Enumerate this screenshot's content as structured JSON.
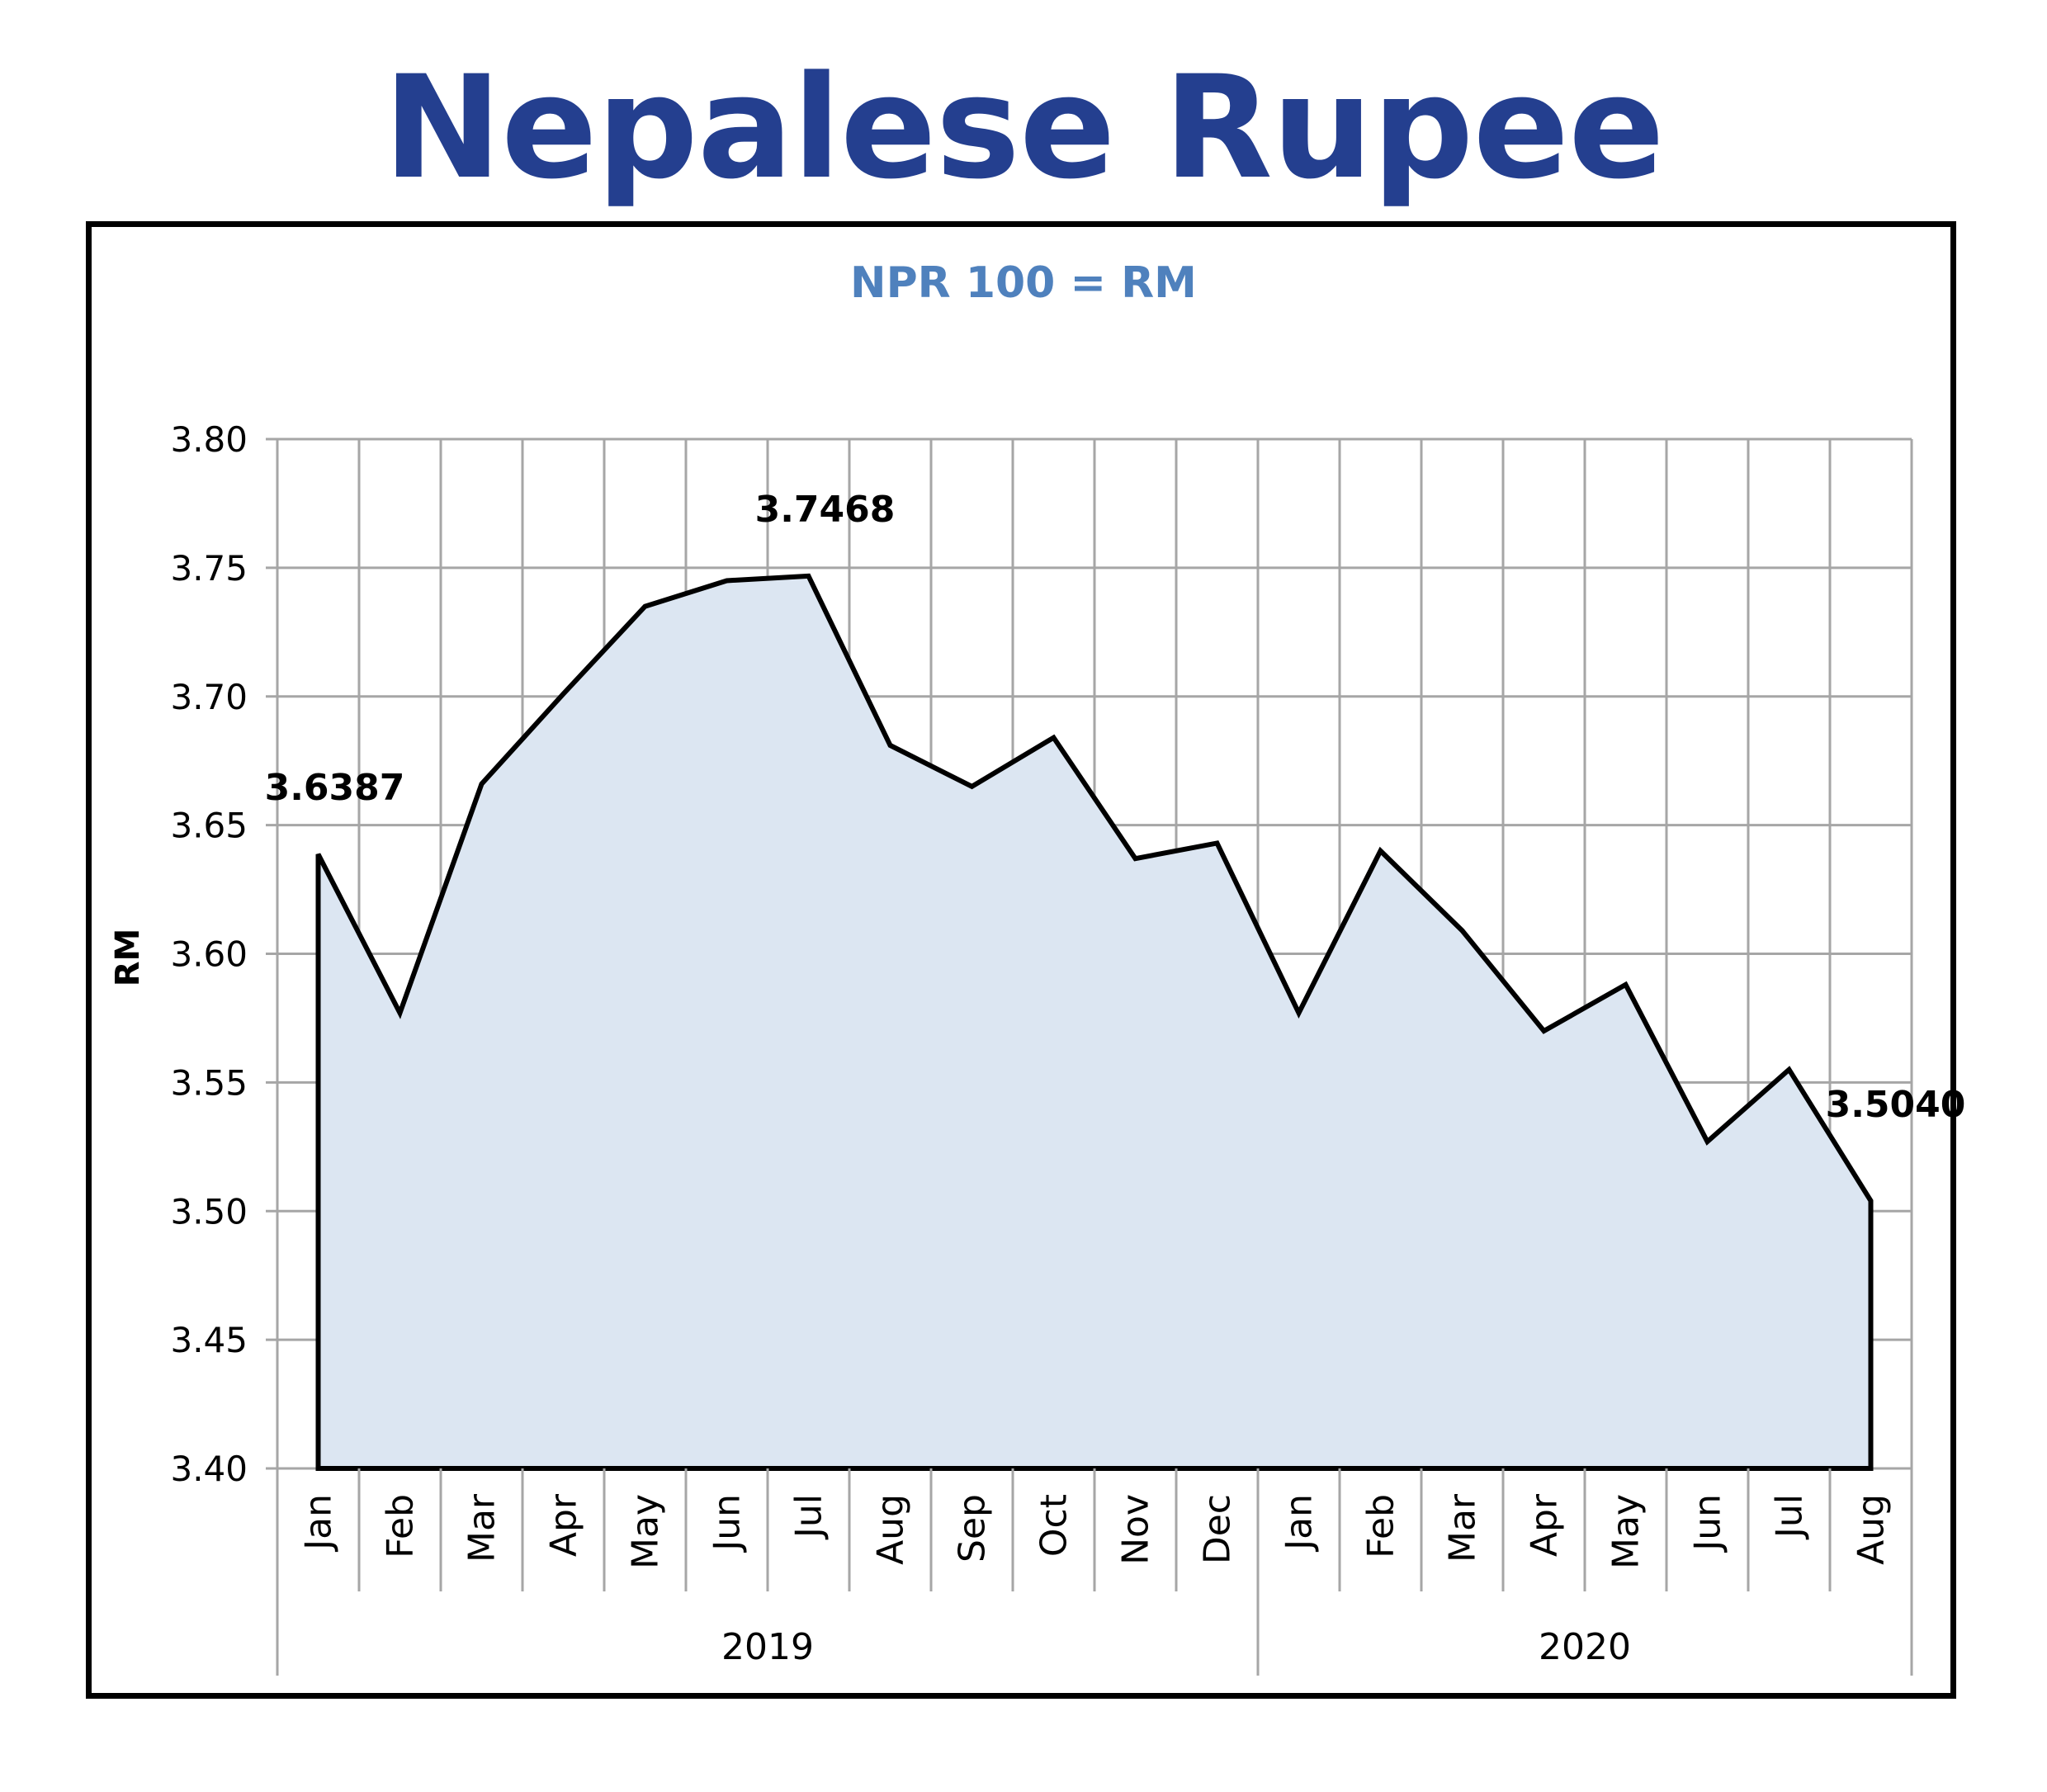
{
  "title": "Nepalese Rupee",
  "chart_data": {
    "type": "area",
    "subtitle": "NPR 100 = RM",
    "ylabel": "RM",
    "xlabel": "",
    "ylim": [
      3.4,
      3.8
    ],
    "yticks": [
      "3.80",
      "3.75",
      "3.70",
      "3.65",
      "3.60",
      "3.55",
      "3.50",
      "3.45",
      "3.40"
    ],
    "grid": true,
    "legend": "none",
    "categories": [
      "Jan",
      "Feb",
      "Mar",
      "Apr",
      "May",
      "Jun",
      "Jul",
      "Aug",
      "Sep",
      "Oct",
      "Nov",
      "Dec",
      "Jan",
      "Feb",
      "Mar",
      "Apr",
      "May",
      "Jun",
      "Jul",
      "Aug"
    ],
    "groups": [
      {
        "label": "2019",
        "count": 12
      },
      {
        "label": "2020",
        "count": 8
      }
    ],
    "series": [
      {
        "values": [
          3.6387,
          3.577,
          3.666,
          3.701,
          3.735,
          3.745,
          3.7468,
          3.681,
          3.665,
          3.684,
          3.637,
          3.643,
          3.577,
          3.64,
          3.609,
          3.57,
          3.588,
          3.527,
          3.555,
          3.504
        ]
      }
    ],
    "annotations": [
      {
        "index": 0,
        "text": "3.6387"
      },
      {
        "index": 6,
        "text": "3.7468"
      },
      {
        "index": 19,
        "text": "3.5040"
      }
    ],
    "colors": {
      "title": "#243f8f",
      "subtitle": "#4f81bd",
      "area_fill": "#dce6f2",
      "line": "#000000",
      "grid": "#a6a6a6",
      "text": "#000000"
    }
  }
}
